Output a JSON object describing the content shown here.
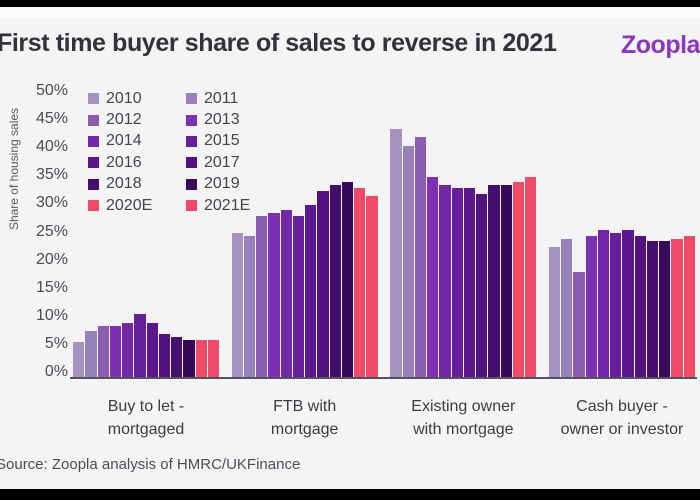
{
  "header": {
    "title": "First time buyer share of sales to reverse in 2021",
    "logo": "Zoopla"
  },
  "source": "Source: Zoopla analysis of HMRC/UKFinance",
  "chart_data": {
    "type": "bar",
    "title": "First time buyer share of sales to reverse in 2021",
    "xlabel": "",
    "ylabel": "Share of housing sales",
    "ylim": [
      0,
      50
    ],
    "ytick_values": [
      0,
      5,
      10,
      15,
      20,
      25,
      30,
      35,
      40,
      45,
      50
    ],
    "ytick_labels": [
      "0%",
      "5%",
      "10%",
      "15%",
      "20%",
      "25%",
      "30%",
      "35%",
      "40%",
      "45%",
      "50%"
    ],
    "grid": false,
    "legend_position": "top-left-two-columns",
    "categories": [
      "Buy to let - mortgaged",
      "FTB with mortgage",
      "Existing owner with mortgage",
      "Cash buyer - owner or investor"
    ],
    "category_label_lines": [
      [
        "Buy to let -",
        "mortgaged"
      ],
      [
        "FTB with",
        "mortgage"
      ],
      [
        "Existing owner",
        "with mortgage"
      ],
      [
        "Cash buyer -",
        "owner or investor"
      ]
    ],
    "series": [
      {
        "name": "2010",
        "color": "#a592c3",
        "values": [
          6.5,
          26,
          44.5,
          23.5
        ]
      },
      {
        "name": "2011",
        "color": "#9681bb",
        "values": [
          8.5,
          25.5,
          41.5,
          25
        ]
      },
      {
        "name": "2012",
        "color": "#8a5db1",
        "values": [
          9.5,
          29,
          43,
          19
        ]
      },
      {
        "name": "2013",
        "color": "#7e30b5",
        "values": [
          9.5,
          29.5,
          36,
          25.5
        ]
      },
      {
        "name": "2014",
        "color": "#7327a9",
        "values": [
          10,
          30,
          34.5,
          26.5
        ]
      },
      {
        "name": "2015",
        "color": "#671e9c",
        "values": [
          11.5,
          29,
          34,
          26
        ]
      },
      {
        "name": "2016",
        "color": "#5b178d",
        "values": [
          10,
          31,
          34,
          26.5
        ]
      },
      {
        "name": "2017",
        "color": "#4f127e",
        "values": [
          8,
          33.5,
          33,
          25.5
        ]
      },
      {
        "name": "2018",
        "color": "#430e6d",
        "values": [
          7.5,
          34.5,
          34.5,
          24.5
        ]
      },
      {
        "name": "2019",
        "color": "#36095b",
        "values": [
          7,
          35,
          34.5,
          24.5
        ]
      },
      {
        "name": "2020E",
        "color": "#f04a68",
        "values": [
          7,
          34,
          35,
          25
        ]
      },
      {
        "name": "2021E",
        "color": "#f04a68",
        "values": [
          7,
          32.5,
          36,
          25.5
        ]
      }
    ]
  }
}
